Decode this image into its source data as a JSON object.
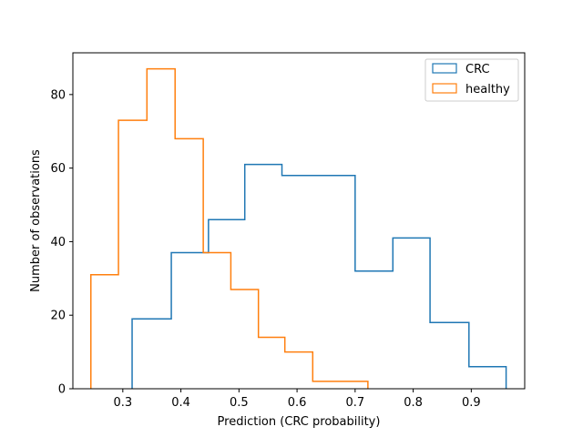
{
  "chart_data": {
    "type": "histogram-step",
    "xlabel": "Prediction (CRC probability)",
    "ylabel": "Number of observations",
    "xlim": [
      0.214,
      0.992
    ],
    "ylim": [
      0,
      91.35
    ],
    "xticks": [
      0.3,
      0.4,
      0.5,
      0.6,
      0.7,
      0.8,
      0.9
    ],
    "xtick_labels": [
      "0.3",
      "0.4",
      "0.5",
      "0.6",
      "0.7",
      "0.8",
      "0.9"
    ],
    "yticks": [
      0,
      20,
      40,
      60,
      80
    ],
    "ytick_labels": [
      "0",
      "20",
      "40",
      "60",
      "80"
    ],
    "grid": false,
    "legend_position": "top-right",
    "series": [
      {
        "name": "CRC",
        "color": "#1f77b4",
        "bin_edges": [
          0.316,
          0.3835,
          0.4475,
          0.51,
          0.574,
          0.637,
          0.7,
          0.765,
          0.829,
          0.896,
          0.96
        ],
        "counts": [
          19,
          37,
          46,
          61,
          58,
          58,
          32,
          41,
          18,
          6
        ]
      },
      {
        "name": "healthy",
        "color": "#ff7f0e",
        "bin_edges": [
          0.245,
          0.2925,
          0.3415,
          0.39,
          0.4385,
          0.486,
          0.5335,
          0.579,
          0.627,
          0.6745,
          0.722
        ],
        "counts": [
          31,
          73,
          87,
          68,
          37,
          27,
          14,
          10,
          2,
          2
        ]
      }
    ]
  }
}
